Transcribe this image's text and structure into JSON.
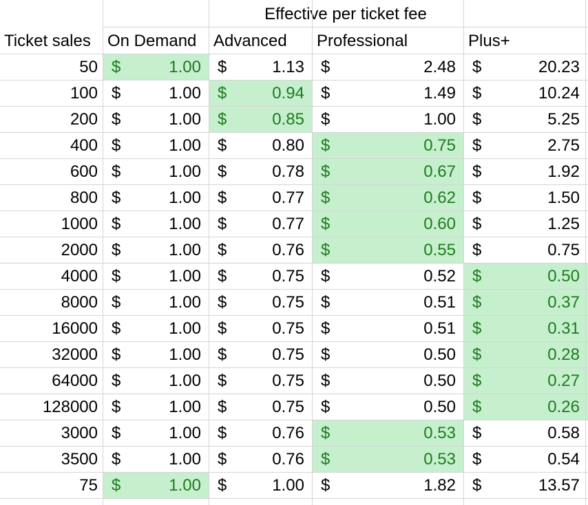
{
  "sheet": {
    "super_header": "Effective per ticket fee",
    "column_headers": [
      "Ticket sales",
      "On Demand",
      "Advanced",
      "Professional",
      "Plus+"
    ],
    "highlight_color": "#c6efce",
    "highlight_text_color": "#1e7b1e",
    "currency_symbol": "$",
    "rows": [
      {
        "sales": "50",
        "values": [
          "1.00",
          "1.13",
          "2.48",
          "20.23"
        ],
        "highlight": 0
      },
      {
        "sales": "100",
        "values": [
          "1.00",
          "0.94",
          "1.49",
          "10.24"
        ],
        "highlight": 1
      },
      {
        "sales": "200",
        "values": [
          "1.00",
          "0.85",
          "1.00",
          "5.25"
        ],
        "highlight": 1
      },
      {
        "sales": "400",
        "values": [
          "1.00",
          "0.80",
          "0.75",
          "2.75"
        ],
        "highlight": 2
      },
      {
        "sales": "600",
        "values": [
          "1.00",
          "0.78",
          "0.67",
          "1.92"
        ],
        "highlight": 2
      },
      {
        "sales": "800",
        "values": [
          "1.00",
          "0.77",
          "0.62",
          "1.50"
        ],
        "highlight": 2
      },
      {
        "sales": "1000",
        "values": [
          "1.00",
          "0.77",
          "0.60",
          "1.25"
        ],
        "highlight": 2
      },
      {
        "sales": "2000",
        "values": [
          "1.00",
          "0.76",
          "0.55",
          "0.75"
        ],
        "highlight": 2
      },
      {
        "sales": "4000",
        "values": [
          "1.00",
          "0.75",
          "0.52",
          "0.50"
        ],
        "highlight": 3
      },
      {
        "sales": "8000",
        "values": [
          "1.00",
          "0.75",
          "0.51",
          "0.37"
        ],
        "highlight": 3
      },
      {
        "sales": "16000",
        "values": [
          "1.00",
          "0.75",
          "0.51",
          "0.31"
        ],
        "highlight": 3
      },
      {
        "sales": "32000",
        "values": [
          "1.00",
          "0.75",
          "0.50",
          "0.28"
        ],
        "highlight": 3
      },
      {
        "sales": "64000",
        "values": [
          "1.00",
          "0.75",
          "0.50",
          "0.27"
        ],
        "highlight": 3
      },
      {
        "sales": "128000",
        "values": [
          "1.00",
          "0.75",
          "0.50",
          "0.26"
        ],
        "highlight": 3
      },
      {
        "sales": "3000",
        "values": [
          "1.00",
          "0.76",
          "0.53",
          "0.58"
        ],
        "highlight": 2
      },
      {
        "sales": "3500",
        "values": [
          "1.00",
          "0.76",
          "0.53",
          "0.54"
        ],
        "highlight": 2
      },
      {
        "sales": "75",
        "values": [
          "1.00",
          "1.00",
          "1.82",
          "13.57"
        ],
        "highlight": 0
      }
    ]
  }
}
